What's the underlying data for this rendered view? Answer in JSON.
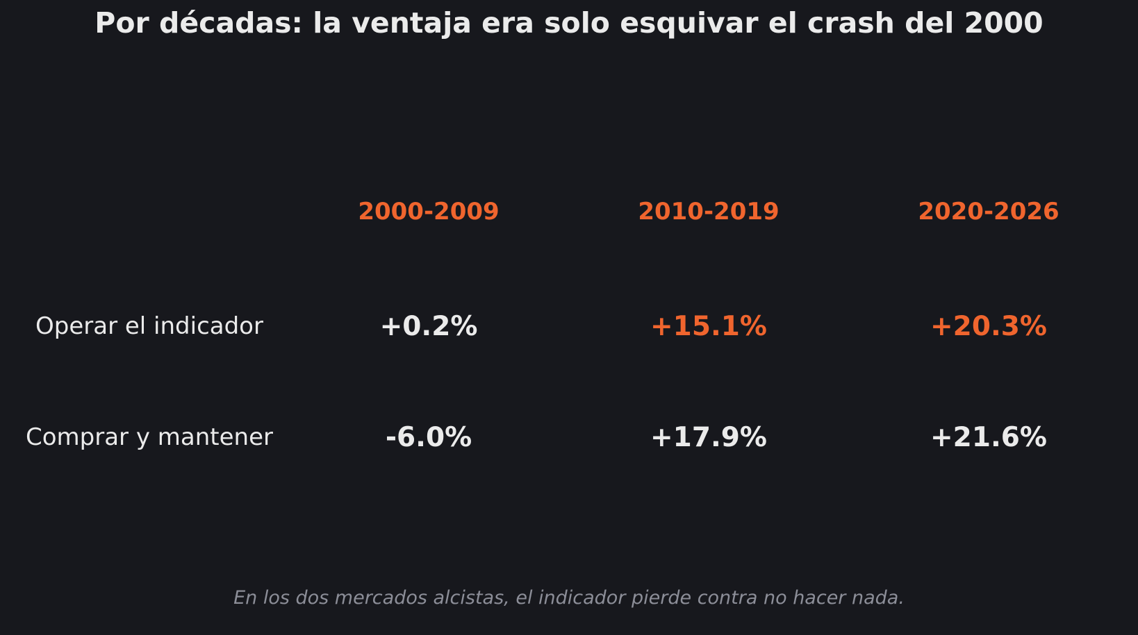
{
  "chart_data": {
    "type": "table",
    "title": "Por décadas: la ventaja era solo esquivar el crash del 2000",
    "columns": [
      "2000-2009",
      "2010-2019",
      "2020-2026"
    ],
    "rows": [
      {
        "label": "Operar el indicador",
        "values": [
          "+0.2%",
          "+15.1%",
          "+20.3%"
        ],
        "highlight": [
          false,
          true,
          true
        ]
      },
      {
        "label": "Comprar y mantener",
        "values": [
          "-6.0%",
          "+17.9%",
          "+21.6%"
        ],
        "highlight": [
          false,
          false,
          false
        ]
      }
    ],
    "caption": "En los dos mercados alcistas, el indicador pierde contra no hacer nada."
  },
  "colors": {
    "background": "#17181d",
    "text": "#ebebeb",
    "accent": "#f0652e",
    "caption": "#8c8e98"
  }
}
